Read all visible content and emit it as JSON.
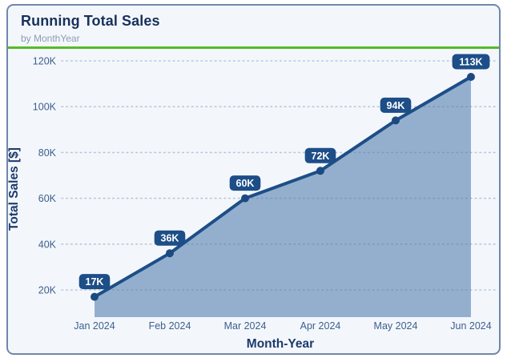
{
  "card": {
    "title": "Running Total Sales",
    "subtitle": "by MonthYear"
  },
  "colors": {
    "card_background": "#f3f7fc",
    "card_border": "#6f88aa",
    "header_accent_green": "#54bb27",
    "line": "#1d4e87",
    "marker": "#1b4a81",
    "area_fill": "#94afce",
    "badge_background": "#1d4e87",
    "badge_text": "#ffffff",
    "gridline": "#5d7aa0",
    "tick_text": "#3d5e8c",
    "axis_title_text": "#1c3a6b",
    "title_text": "#18315a",
    "subtitle_text": "#8d9cb2"
  },
  "chart_data": {
    "type": "area",
    "title": "Running Total Sales",
    "subtitle": "by MonthYear",
    "xlabel": "Month-Year",
    "ylabel": "Total Sales [$]",
    "categories": [
      "Jan 2024",
      "Feb 2024",
      "Mar 2024",
      "Apr 2024",
      "May 2024",
      "Jun 2024"
    ],
    "series": [
      {
        "name": "Running Total Sales",
        "values": [
          17000,
          36000,
          60000,
          72000,
          94000,
          113000
        ],
        "data_labels": [
          "17K",
          "36K",
          "60K",
          "72K",
          "94K",
          "113K"
        ]
      }
    ],
    "y_ticks": [
      {
        "value": 20000,
        "label": "20K"
      },
      {
        "value": 40000,
        "label": "40K"
      },
      {
        "value": 60000,
        "label": "60K"
      },
      {
        "value": 80000,
        "label": "80K"
      },
      {
        "value": 100000,
        "label": "100K"
      },
      {
        "value": 120000,
        "label": "120K"
      }
    ],
    "ylim": [
      8000,
      125000
    ],
    "grid": "dotted-horizontal",
    "legend": "none",
    "data_labels_visible": true
  }
}
